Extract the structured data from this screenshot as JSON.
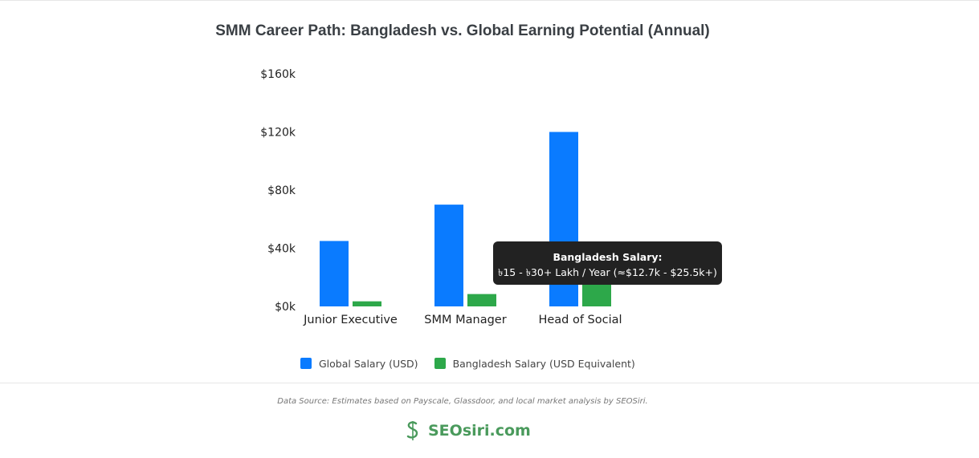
{
  "chart_data": {
    "type": "bar",
    "title": "SMM Career Path: Bangladesh vs. Global Earning Potential (Annual)",
    "categories": [
      "Junior Executive",
      "SMM Manager",
      "Head of Social"
    ],
    "series": [
      {
        "name": "Global Salary (USD)",
        "color": "#0a7bff",
        "values": [
          45000,
          70000,
          120000
        ]
      },
      {
        "name": "Bangladesh Salary (USD Equivalent)",
        "color": "#2da84a",
        "values": [
          3500,
          8500,
          19000
        ]
      }
    ],
    "ylim": [
      0,
      160000
    ],
    "yticks": [
      "$0k",
      "$40k",
      "$80k",
      "$120k",
      "$160k"
    ],
    "ytick_values": [
      0,
      40000,
      80000,
      120000,
      160000
    ],
    "grid": false,
    "legend": "bottom",
    "tooltip": {
      "title": "Bangladesh Salary:",
      "body": "৳15 - ৳30+ Lakh / Year (≈$12.7k - $25.5k+)"
    }
  },
  "footer": {
    "source": "Data Source: Estimates based on Payscale, Glassdoor, and local market analysis by SEOSiri.",
    "brand": "SEOsiri.com",
    "brand_color": "#4a9a5c"
  }
}
